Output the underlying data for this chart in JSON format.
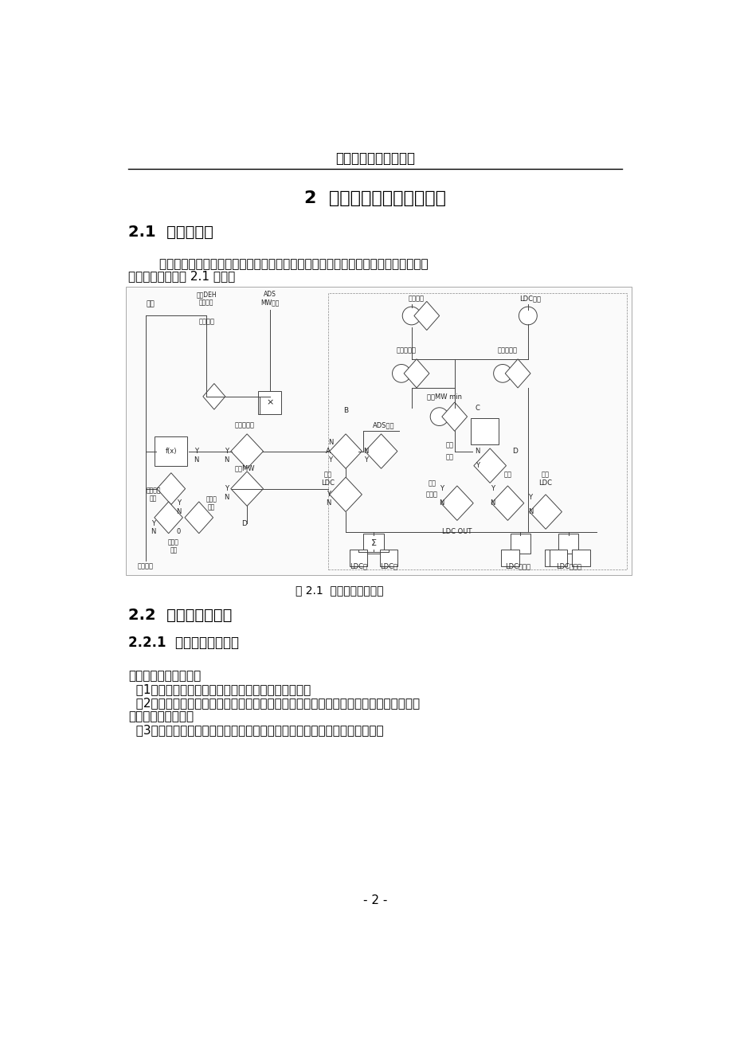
{
  "page_title": "沈阳工程学院课程设计",
  "section2_title": "2  系统的组成及各部分功能",
  "section21_title": "2.1  系统的组成",
  "section21_body1": "        负荷指令处理部分大致由两部分组成：负荷指令运算回路和负荷指令限制回路。负荷",
  "section21_body2": "指令处理回路如图 2.1 所示：",
  "fig_caption": "图 2.1  负荷指令处理回路",
  "section22_title": "2.2  系统各部分功能",
  "section221_title": "2.2.1  负荷指令运算回路",
  "section221_body1": "该回路的主要任务是：",
  "section221_item1": "  （1）根据负荷控制的要求选择目标指令的形成方式；",
  "section221_item2": "  （2）考虑汽轮机等主要设备的热应力变化和机组负荷的跟踪能力，对目标负荷指令进行",
  "section221_item2b": "适当的变化率限制；",
  "section221_item3": "  （3）对机组参加电网调频所需要负荷指令信号的幅值及频率范围作出规定。",
  "page_number": "- 2 -",
  "bg_color": "#ffffff",
  "text_color": "#000000"
}
